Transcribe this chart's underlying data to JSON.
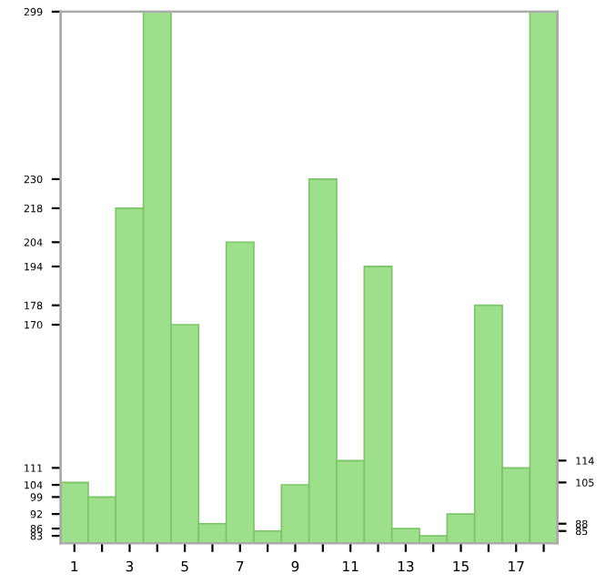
{
  "chart_data": {
    "type": "bar",
    "categories": [
      "1",
      null,
      "3",
      null,
      "5",
      null,
      "7",
      null,
      "9",
      null,
      "11",
      null,
      "13",
      null,
      "15",
      null,
      "17",
      null
    ],
    "values": [
      105,
      99,
      218,
      299,
      170,
      88,
      204,
      85,
      104,
      230,
      114,
      194,
      86,
      83,
      92,
      178,
      111,
      299
    ],
    "color": "#9ddf8a",
    "ylim": [
      80,
      299
    ],
    "yticks": [
      83,
      86,
      92,
      99,
      104,
      111,
      170,
      178,
      194,
      204,
      218,
      230,
      299
    ],
    "y2lim": [
      80,
      299
    ],
    "y2ticks": [
      85,
      88,
      105,
      114
    ],
    "grid": false
  }
}
